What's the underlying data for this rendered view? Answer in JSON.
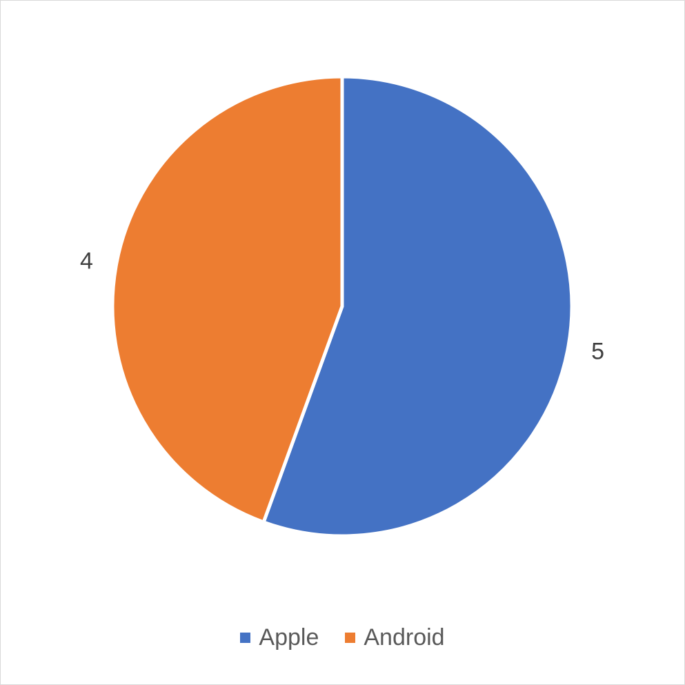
{
  "chart_data": {
    "type": "pie",
    "title": "",
    "categories": [
      "Apple",
      "Android"
    ],
    "values": [
      5,
      4
    ],
    "data_labels": [
      "5",
      "4"
    ],
    "colors": [
      "#4472C4",
      "#ED7D31"
    ],
    "start_angle_deg": 0,
    "direction": "clockwise",
    "legend_position": "bottom"
  },
  "legend": {
    "items": [
      {
        "label": "Apple",
        "color": "#4472C4"
      },
      {
        "label": "Android",
        "color": "#ED7D31"
      }
    ]
  }
}
